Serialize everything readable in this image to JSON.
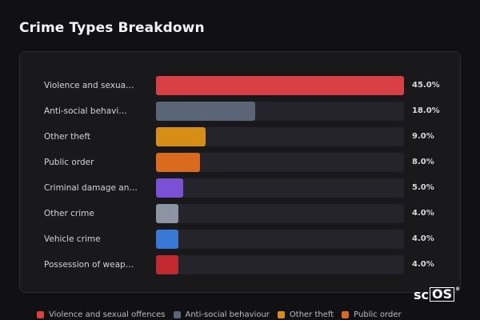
{
  "title": "Crime Types Breakdown",
  "chart_data": {
    "type": "bar",
    "orientation": "horizontal",
    "title": "Crime Types Breakdown",
    "categories": [
      "Violence and sexua…",
      "Anti-social behavi…",
      "Other theft",
      "Public order",
      "Criminal damage an…",
      "Other crime",
      "Vehicle crime",
      "Possession of weap…"
    ],
    "values": [
      45.0,
      18.0,
      9.0,
      8.0,
      5.0,
      4.0,
      4.0,
      4.0
    ],
    "value_labels": [
      "45.0%",
      "18.0%",
      "9.0%",
      "8.0%",
      "5.0%",
      "4.0%",
      "4.0%",
      "4.0%"
    ],
    "colors": [
      "#d94046",
      "#5a6678",
      "#d68e14",
      "#d96a1e",
      "#7a50d4",
      "#8c93a3",
      "#3a78d6",
      "#c02a2e"
    ],
    "xlim": [
      0,
      45
    ],
    "grid": false,
    "legend_position": "bottom"
  },
  "legend": [
    {
      "label": "Violence and sexual offences",
      "color": "#d94046"
    },
    {
      "label": "Anti-social behaviour",
      "color": "#5a6678"
    },
    {
      "label": "Other theft",
      "color": "#d68e14"
    },
    {
      "label": "Public order",
      "color": "#d96a1e"
    }
  ],
  "logo": {
    "text_plain": "sc",
    "text_boxed": "OS",
    "mark": "®"
  }
}
